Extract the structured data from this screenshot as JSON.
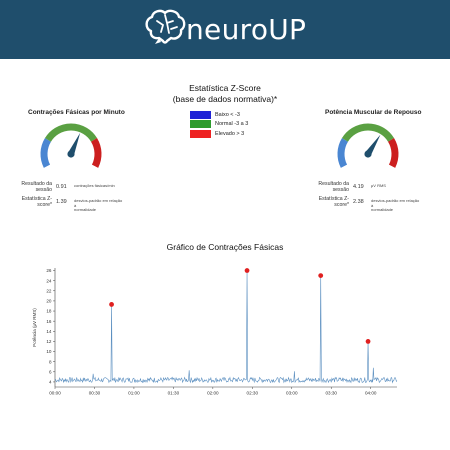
{
  "header": {
    "brand": "neuroUP",
    "logo_icon": "brain-icon",
    "background": "#1f4e6c"
  },
  "zscore": {
    "title_line1": "Estatística Z-Score",
    "title_line2": "(base de dados normativa)*",
    "legend": [
      {
        "label": "Baixo     < -3",
        "color": "#1f22d6"
      },
      {
        "label": "Normal -3 a 3",
        "color": "#2d9b2d"
      },
      {
        "label": "Elevado > 3",
        "color": "#ee2222"
      }
    ]
  },
  "gauges": [
    {
      "title": "Contrações Fásicas por Minuto",
      "level_fraction": 0.6,
      "result_label_1": "Resultado da",
      "result_label_2": "sessão",
      "result_value": "0.91",
      "result_unit": "contrações fásicas/min",
      "z_label_1": "Estatística Z-",
      "z_label_2": "score*",
      "z_value": "1.39",
      "z_unit_1": "desvios-padrão em relação à",
      "z_unit_2": "normalidade"
    },
    {
      "title": "Potência Muscular de Repouso",
      "level_fraction": 0.64,
      "result_label_1": "Resultado da",
      "result_label_2": "sessão",
      "result_value": "4.19",
      "result_unit": "μV RMS",
      "z_label_1": "Estatística Z-",
      "z_label_2": "score*",
      "z_value": "2.38",
      "z_unit_1": "desvios-padrão em relação à",
      "z_unit_2": "normalidade"
    }
  ],
  "gauge_colors": {
    "low": "#4a86d2",
    "normal": "#5aa042",
    "high": "#cc1f1f",
    "needle": "#1f4e6c"
  },
  "chart": {
    "title": "Gráfico de Contrações Fásicas",
    "ylabel": "Potência (μV RMS)",
    "line_color": "#5b8fc0",
    "peak_color": "#e02020"
  },
  "chart_data": {
    "type": "line",
    "title": "Gráfico de Contrações Fásicas",
    "ylabel": "Potência (μV RMS)",
    "xlabel": "",
    "x_ticks": [
      "00:00",
      "00:30",
      "01:00",
      "01:30",
      "02:00",
      "02:30",
      "03:00",
      "03:30",
      "04:00"
    ],
    "y_ticks": [
      4,
      6,
      8,
      10,
      12,
      14,
      16,
      18,
      20,
      22,
      24,
      26
    ],
    "ylim": [
      3,
      26.5
    ],
    "xlim_seconds": [
      0,
      260
    ],
    "baseline": 4.4,
    "spikes": [
      {
        "t": 29,
        "value": 5.6
      },
      {
        "t": 43,
        "value": 19.3,
        "marked": true
      },
      {
        "t": 102,
        "value": 6.3
      },
      {
        "t": 146,
        "value": 26.0,
        "marked": true
      },
      {
        "t": 182,
        "value": 6.1
      },
      {
        "t": 202,
        "value": 25.0,
        "marked": true
      },
      {
        "t": 238,
        "value": 12.0,
        "marked": true
      },
      {
        "t": 242,
        "value": 6.8
      }
    ]
  }
}
